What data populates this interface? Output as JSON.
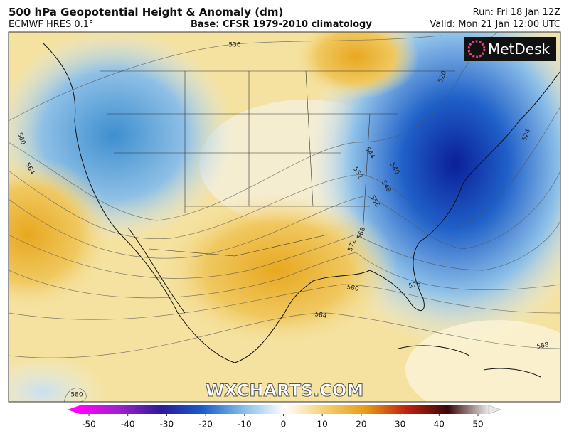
{
  "header": {
    "title": "500 hPa Geopotential Height & Anomaly (dm)",
    "model": "ECMWF HRES 0.1°",
    "base": "Base: CFSR 1979-2010 climatology",
    "run": "Run: Fri 18 Jan 12Z",
    "valid": "Valid: Mon 21 Jan 12:00 UTC"
  },
  "logo": "MetDesk",
  "watermark": "WXCHARTS.COM",
  "contour_labels": [
    536,
    520,
    524,
    544,
    540,
    552,
    548,
    556,
    560,
    564,
    568,
    572,
    576,
    580,
    584,
    588,
    580
  ],
  "colorbar": {
    "ticks": [
      -50,
      -40,
      -30,
      -20,
      -10,
      0,
      10,
      20,
      30,
      40,
      50
    ]
  }
}
